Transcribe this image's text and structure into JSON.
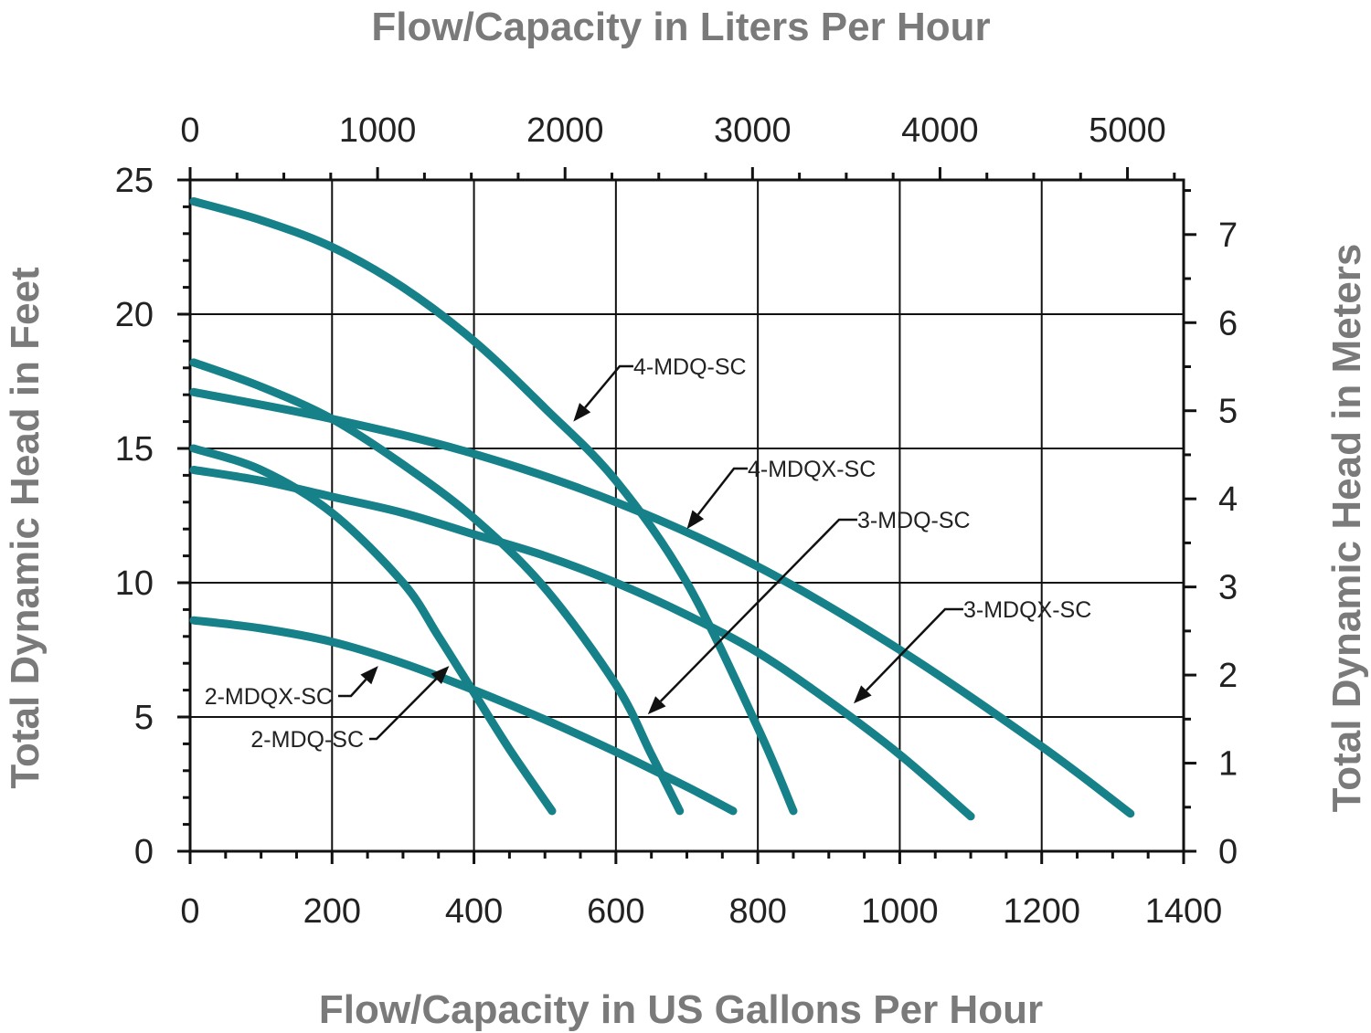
{
  "chart_data": {
    "type": "line",
    "title": "",
    "x_top_label": "Flow/Capacity in Liters Per Hour",
    "xlabel": "Flow/Capacity in US Gallons Per Hour",
    "ylabel": "Total Dynamic Head in Feet",
    "y_right_label": "Total Dynamic Head in Meters",
    "xlim": [
      0,
      1400
    ],
    "ylim": [
      0,
      25
    ],
    "x_ticks": [
      0,
      200,
      400,
      600,
      800,
      1000,
      1200,
      1400
    ],
    "y_ticks": [
      0,
      5,
      10,
      15,
      20,
      25
    ],
    "x_top_ticks": [
      0,
      1000,
      2000,
      3000,
      4000,
      5000
    ],
    "y_right_ticks": [
      0,
      1,
      2,
      3,
      4,
      5,
      6,
      7
    ],
    "grid": true,
    "curve_color": "#17818a",
    "series": [
      {
        "name": "2-MDQX-SC",
        "x": [
          5,
          100,
          200,
          300,
          400,
          500,
          600,
          700,
          765
        ],
        "y": [
          8.6,
          8.3,
          7.8,
          7.0,
          6.0,
          4.9,
          3.7,
          2.4,
          1.5
        ]
      },
      {
        "name": "2-MDQ-SC",
        "x": [
          5,
          100,
          200,
          300,
          350,
          400,
          450,
          510
        ],
        "y": [
          15.0,
          14.2,
          12.6,
          10.0,
          8.0,
          5.9,
          3.8,
          1.5
        ]
      },
      {
        "name": "3-MDQ-SC",
        "x": [
          5,
          100,
          200,
          300,
          400,
          500,
          600,
          650,
          690
        ],
        "y": [
          18.2,
          17.3,
          16.1,
          14.4,
          12.4,
          9.8,
          6.2,
          3.6,
          1.5
        ]
      },
      {
        "name": "3-MDQX-SC",
        "x": [
          5,
          100,
          200,
          300,
          400,
          500,
          600,
          700,
          800,
          900,
          1000,
          1100
        ],
        "y": [
          14.2,
          13.8,
          13.2,
          12.6,
          11.8,
          11.0,
          10.0,
          8.8,
          7.4,
          5.6,
          3.6,
          1.3
        ]
      },
      {
        "name": "4-MDQ-SC",
        "x": [
          5,
          100,
          200,
          300,
          400,
          500,
          600,
          700,
          800,
          850
        ],
        "y": [
          24.2,
          23.5,
          22.5,
          21.0,
          19.0,
          16.5,
          13.8,
          10.0,
          4.6,
          1.5
        ]
      },
      {
        "name": "4-MDQX-SC",
        "x": [
          5,
          200,
          400,
          600,
          800,
          1000,
          1200,
          1325
        ],
        "y": [
          17.1,
          16.1,
          14.8,
          13.0,
          10.6,
          7.5,
          3.9,
          1.4
        ]
      }
    ],
    "annotations": [
      {
        "text": "4-MDQ-SC",
        "x": 540,
        "y": 16.0
      },
      {
        "text": "4-MDQX-SC",
        "x": 700,
        "y": 12.0
      },
      {
        "text": "3-MDQ-SC",
        "x": 645,
        "y": 5.1
      },
      {
        "text": "3-MDQX-SC",
        "x": 935,
        "y": 5.5
      },
      {
        "text": "2-MDQX-SC",
        "x": 265,
        "y": 6.9
      },
      {
        "text": "2-MDQ-SC",
        "x": 365,
        "y": 6.9
      }
    ]
  }
}
